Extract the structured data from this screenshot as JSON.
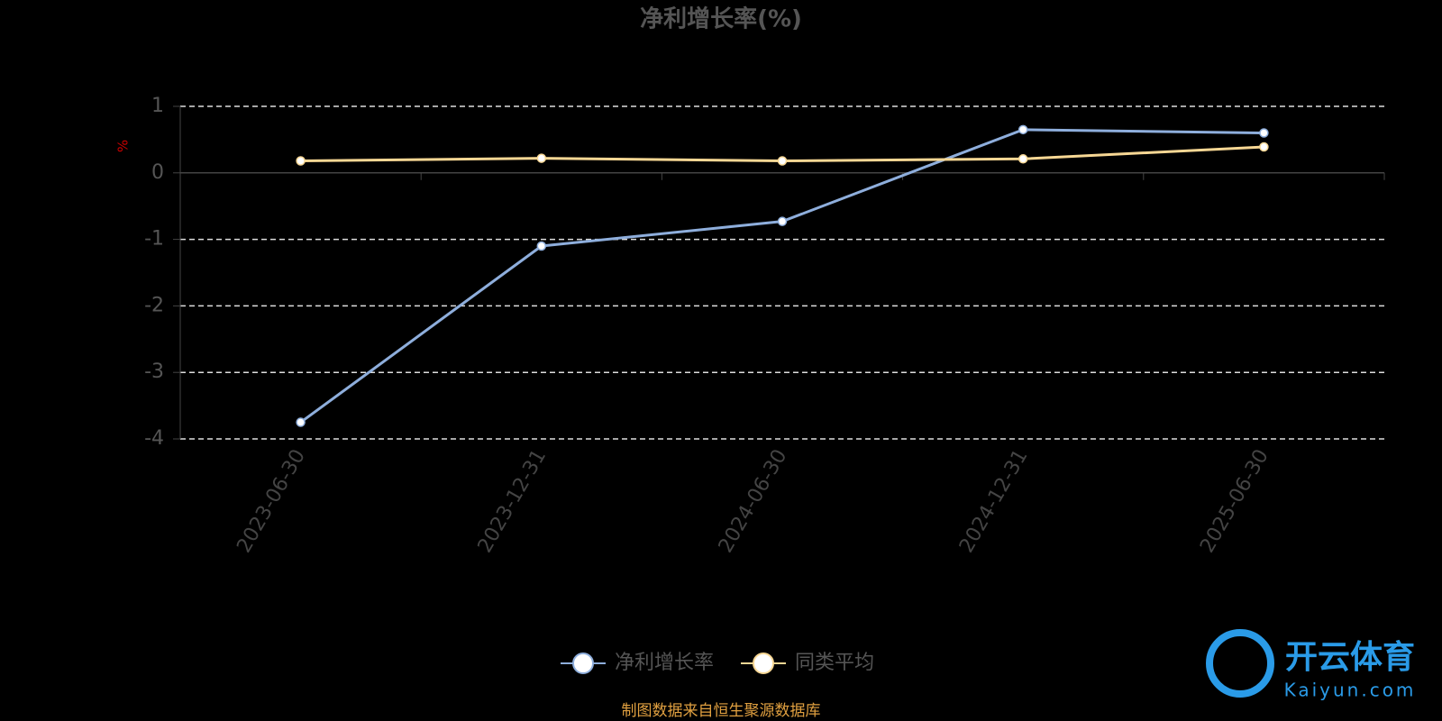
{
  "chart_data": {
    "type": "line",
    "title": "净利增长率(%)",
    "y_label": "%",
    "categories": [
      "2023-06-30",
      "2023-12-31",
      "2024-06-30",
      "2024-12-31",
      "2025-06-30"
    ],
    "series": [
      {
        "name": "净利增长率",
        "color": "#8eaedc",
        "values": [
          -3.75,
          -1.1,
          -0.73,
          0.65,
          0.6
        ]
      },
      {
        "name": "同类平均",
        "color": "#f7d794",
        "values": [
          0.18,
          0.22,
          0.18,
          0.21,
          0.39
        ]
      }
    ],
    "ylim": [
      -4,
      1
    ],
    "yticks": [
      -4,
      -3,
      -2,
      -1,
      0,
      1
    ],
    "grid": true,
    "source": "制图数据来自恒生聚源数据库",
    "watermark": {
      "name": "开云体育",
      "url": "Kaiyun.com"
    }
  }
}
